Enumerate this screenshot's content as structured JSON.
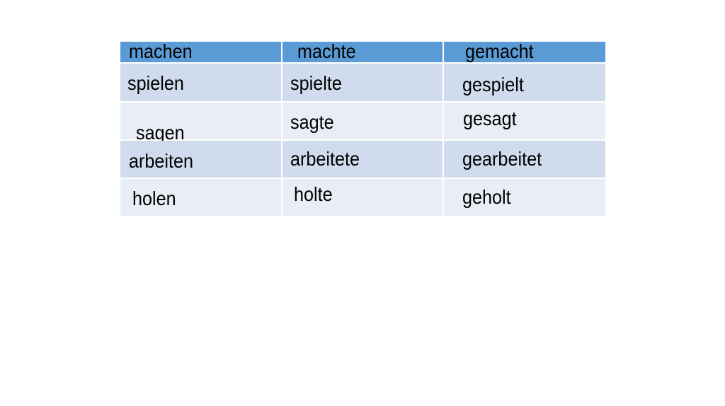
{
  "table": {
    "header": [
      "machen",
      "machte",
      "gemacht"
    ],
    "rows": [
      [
        "spielen",
        "spielte",
        "gespielt"
      ],
      [
        "sagen",
        "sagte",
        "gesagt"
      ],
      [
        "arbeiten",
        "arbeitete",
        "gearbeitet"
      ],
      [
        "holen",
        "holte",
        "geholt"
      ]
    ]
  },
  "colors": {
    "header": "#5b9bd5",
    "row_dark": "#d0dcee",
    "row_light": "#e9edf5"
  }
}
